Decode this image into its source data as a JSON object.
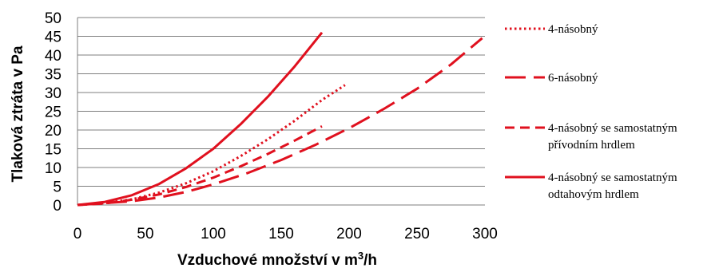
{
  "chart_data": {
    "type": "line",
    "xlabel": "Vzduchové množství v m",
    "xlabel_sup": "3",
    "xlabel_suffix": "/h",
    "ylabel": "Tlaková ztráta v Pa",
    "xlim": [
      0,
      300
    ],
    "ylim": [
      0,
      50
    ],
    "xticks": [
      "0",
      "50",
      "100",
      "150",
      "200",
      "250",
      "300"
    ],
    "yticks": [
      "0",
      "5",
      "10",
      "15",
      "20",
      "25",
      "30",
      "35",
      "40",
      "45",
      "50"
    ],
    "grid": "horizontal",
    "legend_position": "right",
    "series": [
      {
        "name": "4-násobný",
        "dash": "dotted",
        "color": "#e0101e",
        "x": [
          0,
          20,
          40,
          60,
          80,
          100,
          120,
          140,
          160,
          180,
          197
        ],
        "y": [
          0,
          0.5,
          1.5,
          3.3,
          5.8,
          9,
          13,
          17.5,
          22.5,
          28,
          32
        ]
      },
      {
        "name": "6-násobný",
        "dash": "long-dash",
        "color": "#e0101e",
        "x": [
          0,
          40,
          60,
          80,
          100,
          125,
          150,
          175,
          200,
          225,
          250,
          275,
          298
        ],
        "y": [
          0,
          1,
          2,
          3.5,
          5.5,
          8.5,
          12,
          16,
          20.5,
          25.5,
          31,
          37.5,
          44.5
        ]
      },
      {
        "name": "4-násobný se samostatným přívodním hrdlem",
        "dash": "dashed",
        "color": "#e0101e",
        "x": [
          0,
          20,
          40,
          60,
          80,
          100,
          120,
          140,
          160,
          180
        ],
        "y": [
          0,
          0.4,
          1.4,
          2.8,
          4.8,
          7.3,
          10.3,
          13.6,
          17.2,
          21
        ]
      },
      {
        "name": "4-násobný se samostatným odtahovým hrdlem",
        "dash": "solid",
        "color": "#e0101e",
        "x": [
          0,
          20,
          40,
          60,
          80,
          100,
          120,
          140,
          160,
          180
        ],
        "y": [
          0,
          0.8,
          2.6,
          5.6,
          9.8,
          15,
          21.5,
          28.8,
          37,
          46
        ]
      }
    ],
    "legend": [
      {
        "label": "4-násobný"
      },
      {
        "label": "6-násobný"
      },
      {
        "label": "4-násobný se samostatným",
        "label2": "přívodním hrdlem"
      },
      {
        "label": "4-násobný se samostatným",
        "label2": "odtahovým hrdlem"
      }
    ]
  }
}
